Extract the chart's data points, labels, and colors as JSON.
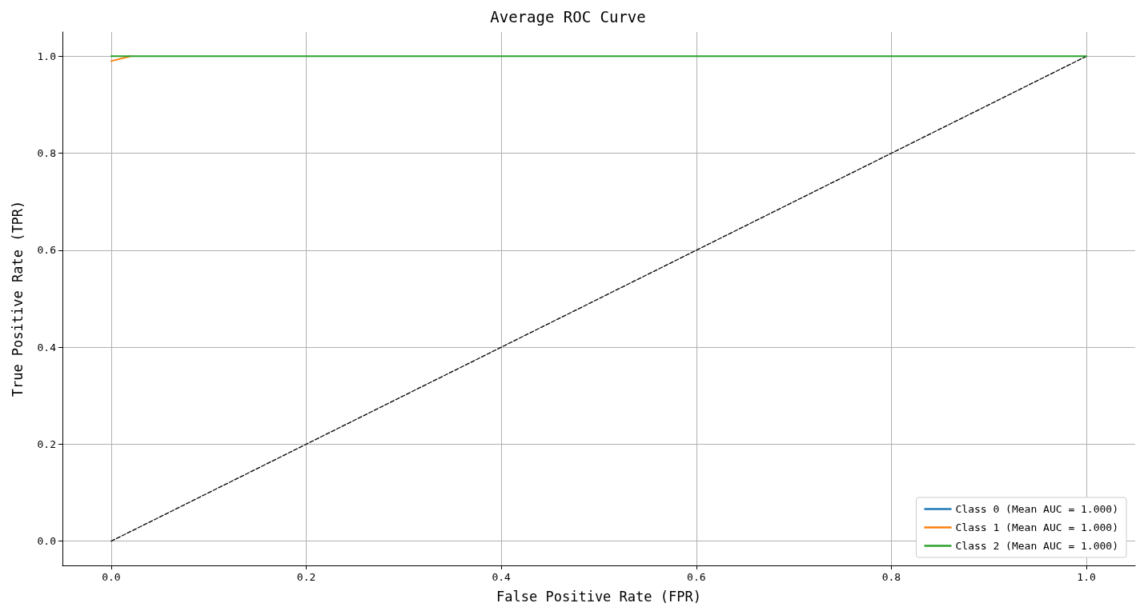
{
  "chart_data": {
    "type": "line",
    "title": "Average ROC Curve",
    "xlabel": "False Positive Rate (FPR)",
    "ylabel": "True Positive Rate (TPR)",
    "series": [
      {
        "name": "Class 0 (Mean AUC = 1.000)",
        "color": "#1f77b4"
      },
      {
        "name": "Class 1 (Mean AUC = 1.000)",
        "color": "#ff7f0e",
        "x": [
          0,
          0.02
        ],
        "values": [
          0.99,
          1
        ]
      },
      {
        "name": "Class 2 (Mean AUC = 1.000)",
        "color": "#2ca02c",
        "x": [
          0,
          0.02,
          1
        ],
        "values": [
          1,
          1,
          1
        ]
      },
      {
        "color": "#000000",
        "x": [
          0,
          1
        ],
        "values": [
          0,
          1
        ],
        "line_style": "dashed"
      }
    ],
    "xlim": [
      -0.05,
      1.05
    ],
    "ylim": [
      -0.05,
      1.05
    ],
    "xticks": [
      {
        "value": 0,
        "label": "0.0"
      },
      {
        "value": 0.2,
        "label": "0.2"
      },
      {
        "value": 0.4,
        "label": "0.4"
      },
      {
        "value": 0.6,
        "label": "0.6"
      },
      {
        "value": 0.8,
        "label": "0.8"
      },
      {
        "value": 1,
        "label": "1.0"
      }
    ],
    "yticks": [
      {
        "value": 0,
        "label": "0.0"
      },
      {
        "value": 0.2,
        "label": "0.2"
      },
      {
        "value": 0.4,
        "label": "0.4"
      },
      {
        "value": 0.6,
        "label": "0.6"
      },
      {
        "value": 0.8,
        "label": "0.8"
      },
      {
        "value": 1,
        "label": "1.0"
      }
    ],
    "grid": true,
    "legend": "bottom right",
    "marker": "none",
    "line_style": "solid"
  }
}
